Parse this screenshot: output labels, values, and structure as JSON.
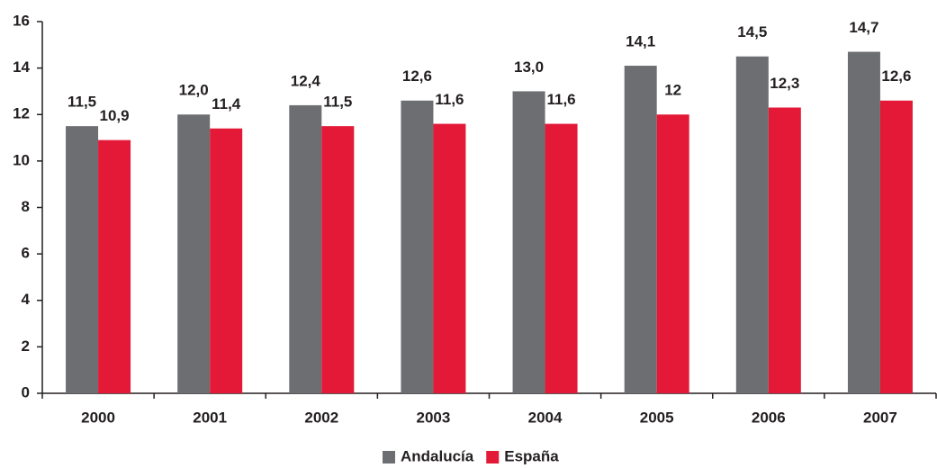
{
  "chart_data": {
    "type": "bar",
    "categories": [
      "2000",
      "2001",
      "2002",
      "2003",
      "2004",
      "2005",
      "2006",
      "2007"
    ],
    "series": [
      {
        "name": "Andalucía",
        "color": "#6d6e71",
        "values": [
          11.5,
          12.0,
          12.4,
          12.6,
          13.0,
          14.1,
          14.5,
          14.7
        ],
        "value_labels": [
          "11,5",
          "12,0",
          "12,4",
          "12,6",
          "13,0",
          "14,1",
          "14,5",
          "14,7"
        ]
      },
      {
        "name": "España",
        "color": "#e31937",
        "values": [
          10.9,
          11.4,
          11.5,
          11.6,
          11.6,
          12,
          12.3,
          12.6
        ],
        "value_labels": [
          "10,9",
          "11,4",
          "11,5",
          "11,6",
          "11,6",
          "12",
          "12,3",
          "12,6"
        ]
      }
    ],
    "ylim": [
      0,
      16
    ],
    "yticks": [
      0,
      2,
      4,
      6,
      8,
      10,
      12,
      14,
      16
    ],
    "grid": false,
    "legend": "bottom"
  }
}
